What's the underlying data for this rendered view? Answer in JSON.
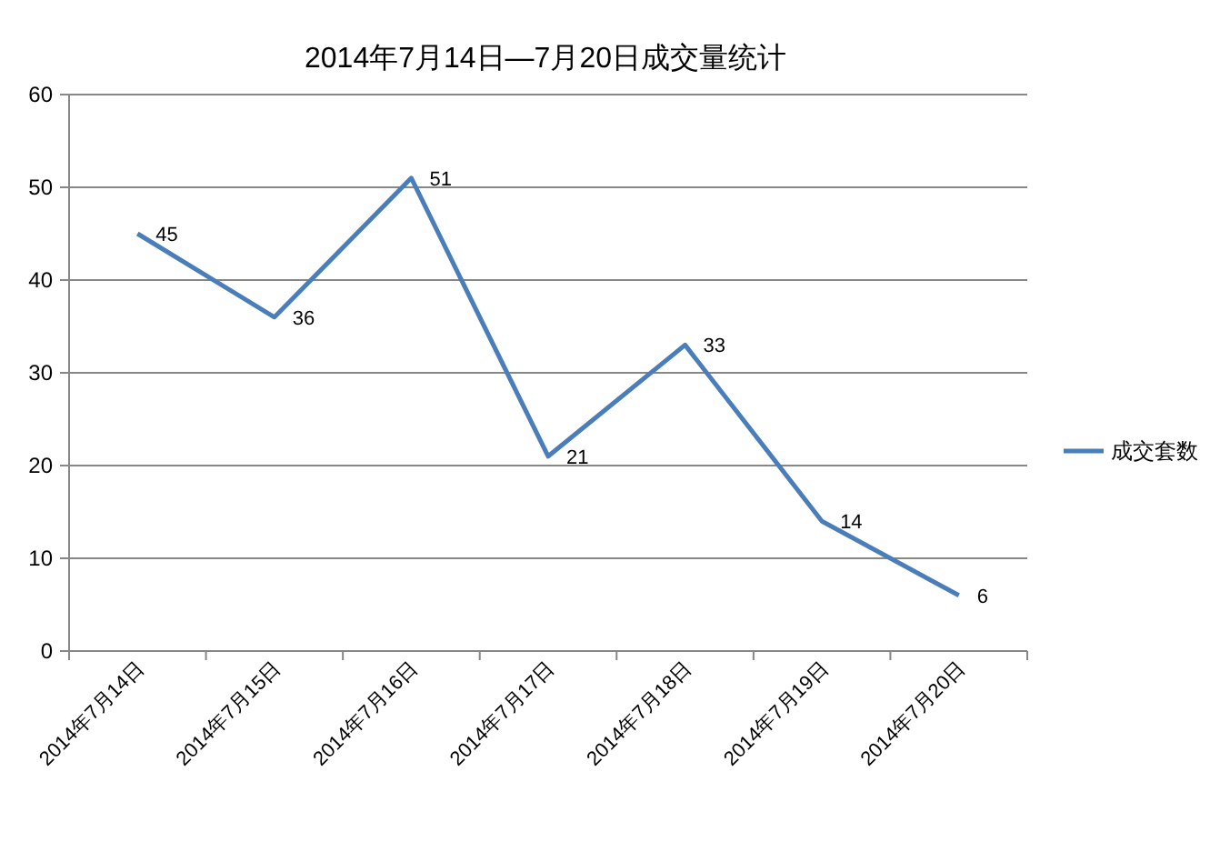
{
  "chart_data": {
    "type": "line",
    "title": "2014年7月14日—7月20日成交量统计",
    "categories": [
      "2014年7月14日",
      "2014年7月15日",
      "2014年7月16日",
      "2014年7月17日",
      "2014年7月18日",
      "2014年7月19日",
      "2014年7月20日"
    ],
    "series": [
      {
        "name": "成交套数",
        "color": "#4a7ebb",
        "values": [
          45,
          36,
          51,
          21,
          33,
          14,
          6
        ]
      }
    ],
    "ylim": [
      0,
      60
    ],
    "yticks": [
      0,
      10,
      20,
      30,
      40,
      50,
      60
    ],
    "grid": "y",
    "legend": "right",
    "data_labels": true
  }
}
